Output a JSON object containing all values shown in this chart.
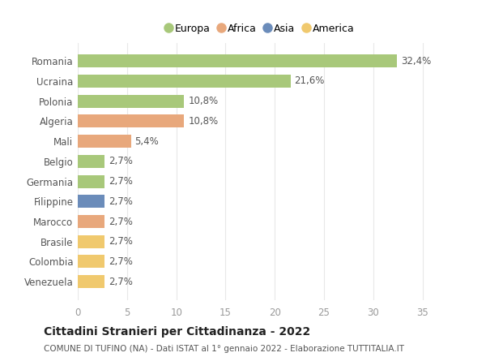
{
  "categories": [
    "Romania",
    "Ucraina",
    "Polonia",
    "Algeria",
    "Mali",
    "Belgio",
    "Germania",
    "Filippine",
    "Marocco",
    "Brasile",
    "Colombia",
    "Venezuela"
  ],
  "values": [
    32.4,
    21.6,
    10.8,
    10.8,
    5.4,
    2.7,
    2.7,
    2.7,
    2.7,
    2.7,
    2.7,
    2.7
  ],
  "labels": [
    "32,4%",
    "21,6%",
    "10,8%",
    "10,8%",
    "5,4%",
    "2,7%",
    "2,7%",
    "2,7%",
    "2,7%",
    "2,7%",
    "2,7%",
    "2,7%"
  ],
  "colors": [
    "#a8c87a",
    "#a8c87a",
    "#a8c87a",
    "#e8a87c",
    "#e8a87c",
    "#a8c87a",
    "#a8c87a",
    "#6b8cba",
    "#e8a87c",
    "#f0c96e",
    "#f0c96e",
    "#f0c96e"
  ],
  "legend": [
    {
      "label": "Europa",
      "color": "#a8c87a"
    },
    {
      "label": "Africa",
      "color": "#e8a87c"
    },
    {
      "label": "Asia",
      "color": "#6b8cba"
    },
    {
      "label": "America",
      "color": "#f0c96e"
    }
  ],
  "xlim": [
    0,
    37
  ],
  "xticks": [
    0,
    5,
    10,
    15,
    20,
    25,
    30,
    35
  ],
  "title": "Cittadini Stranieri per Cittadinanza - 2022",
  "subtitle": "COMUNE DI TUFINO (NA) - Dati ISTAT al 1° gennaio 2022 - Elaborazione TUTTITALIA.IT",
  "background_color": "#ffffff",
  "grid_color": "#e8e8e8",
  "bar_height": 0.65,
  "label_fontsize": 8.5,
  "title_fontsize": 10,
  "subtitle_fontsize": 7.5,
  "tick_fontsize": 8.5
}
